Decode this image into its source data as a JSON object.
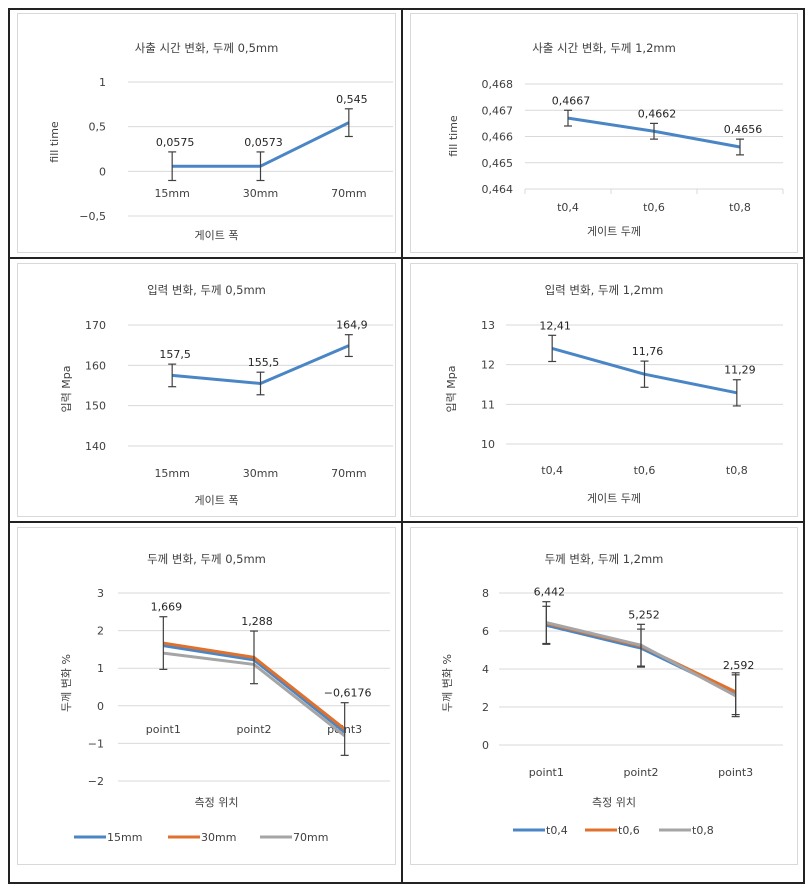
{
  "chart_data": [
    {
      "id": "fill-time-0.5",
      "type": "line",
      "title": "사출 시간 변화, 두께 0,5mm",
      "xlabel": "게이트 폭",
      "ylabel": "fill time",
      "categories": [
        "15mm",
        "30mm",
        "70mm"
      ],
      "ylim": [
        -0.5,
        1
      ],
      "yticks": [
        1,
        0.5,
        0,
        -0.5
      ],
      "ytick_labels": [
        "1",
        "0,5",
        "0",
        "−0,5"
      ],
      "category_labels_at": "y=0",
      "grid": true,
      "legend": null,
      "series": [
        {
          "name": "",
          "color": "#4a86c5",
          "values": [
            0.0575,
            0.0573,
            0.545
          ],
          "error": [
            0.16,
            0.16,
            0.155
          ],
          "labels": [
            "0,0575",
            "0,0573",
            "0,545"
          ]
        }
      ]
    },
    {
      "id": "fill-time-1.2",
      "type": "line",
      "title": "사출 시간 변화, 두께 1,2mm",
      "xlabel": "게이트 두께",
      "ylabel": "fill time",
      "categories": [
        "t0,4",
        "t0,6",
        "t0,8"
      ],
      "ylim": [
        0.464,
        0.468
      ],
      "yticks": [
        0.468,
        0.467,
        0.466,
        0.465,
        0.464
      ],
      "ytick_labels": [
        "0,468",
        "0,467",
        "0,466",
        "0,465",
        "0,464"
      ],
      "grid": true,
      "legend": null,
      "series": [
        {
          "name": "",
          "color": "#4a86c5",
          "values": [
            0.4667,
            0.4662,
            0.4656
          ],
          "error": [
            0.0003,
            0.0003,
            0.0003
          ],
          "labels": [
            "0,4667",
            "0,4662",
            "0,4656"
          ]
        }
      ]
    },
    {
      "id": "pressure-0.5",
      "type": "line",
      "title": "입력 변화, 두께 0,5mm",
      "xlabel": "게이트 폭",
      "ylabel": "입력 Mpa",
      "categories": [
        "15mm",
        "30mm",
        "70mm"
      ],
      "ylim": [
        140,
        170
      ],
      "yticks": [
        170,
        160,
        150,
        140
      ],
      "ytick_labels": [
        "170",
        "160",
        "150",
        "140"
      ],
      "grid": true,
      "legend": null,
      "series": [
        {
          "name": "",
          "color": "#4a86c5",
          "values": [
            157.5,
            155.5,
            164.9
          ],
          "error": [
            2.8,
            2.8,
            2.7
          ],
          "labels": [
            "157,5",
            "155,5",
            "164,9"
          ]
        }
      ]
    },
    {
      "id": "pressure-1.2",
      "type": "line",
      "title": "입력 변화, 두께 1,2mm",
      "xlabel": "게이트 두께",
      "ylabel": "입력 Mpa",
      "categories": [
        "t0,4",
        "t0,6",
        "t0,8"
      ],
      "ylim": [
        10,
        13
      ],
      "yticks": [
        13,
        12,
        11,
        10
      ],
      "ytick_labels": [
        "13",
        "12",
        "11",
        "10"
      ],
      "grid": true,
      "legend": null,
      "series": [
        {
          "name": "",
          "color": "#4a86c5",
          "values": [
            12.41,
            11.76,
            11.29
          ],
          "error": [
            0.33,
            0.33,
            0.33
          ],
          "labels": [
            "12,41",
            "11,76",
            "11,29"
          ]
        }
      ]
    },
    {
      "id": "thickness-0.5",
      "type": "line",
      "title": "두께 변화, 두께 0,5mm",
      "xlabel": "측정 위치",
      "ylabel": "두께 변화 %",
      "categories": [
        "point1",
        "point2",
        "point3"
      ],
      "ylim": [
        -2,
        3
      ],
      "yticks": [
        3,
        2,
        1,
        0,
        -1,
        -2
      ],
      "ytick_labels": [
        "3",
        "2",
        "1",
        "0",
        "−1",
        "−2"
      ],
      "category_labels_at": "y=-0.6",
      "grid": true,
      "legend": "bottom",
      "series": [
        {
          "name": "15mm",
          "color": "#4a86c5",
          "values": [
            1.6,
            1.22,
            -0.7
          ],
          "error": null,
          "labels": null
        },
        {
          "name": "30mm",
          "color": "#e0712c",
          "values": [
            1.669,
            1.288,
            -0.6176
          ],
          "error": [
            0.7,
            0.7,
            0.7
          ],
          "labels": [
            "1,669",
            "1,288",
            "−0,6176"
          ]
        },
        {
          "name": "70mm",
          "color": "#a5a5a5",
          "values": [
            1.4,
            1.1,
            -0.8
          ],
          "error": null,
          "labels": null
        }
      ]
    },
    {
      "id": "thickness-1.2",
      "type": "line",
      "title": "두께 변화, 두께 1,2mm",
      "xlabel": "측정 위치",
      "ylabel": "두께 변화 %",
      "categories": [
        "point1",
        "point2",
        "point3"
      ],
      "ylim": [
        0,
        8
      ],
      "yticks": [
        8,
        6,
        4,
        2,
        0
      ],
      "ytick_labels": [
        "8",
        "6",
        "4",
        "2",
        "0"
      ],
      "grid": true,
      "legend": "bottom",
      "series": [
        {
          "name": "t0,4",
          "color": "#4a86c5",
          "values": [
            6.3,
            5.1,
            2.7
          ],
          "error": [
            1.0,
            1.0,
            1.1
          ],
          "labels": null
        },
        {
          "name": "t0,6",
          "color": "#e0712c",
          "values": [
            6.4,
            5.2,
            2.8
          ],
          "error": null,
          "labels": null
        },
        {
          "name": "t0,8",
          "color": "#a5a5a5",
          "values": [
            6.442,
            5.252,
            2.592
          ],
          "error": [
            1.1,
            1.1,
            1.1
          ],
          "labels": [
            "6,442",
            "5,252",
            "2,592"
          ]
        }
      ]
    }
  ]
}
